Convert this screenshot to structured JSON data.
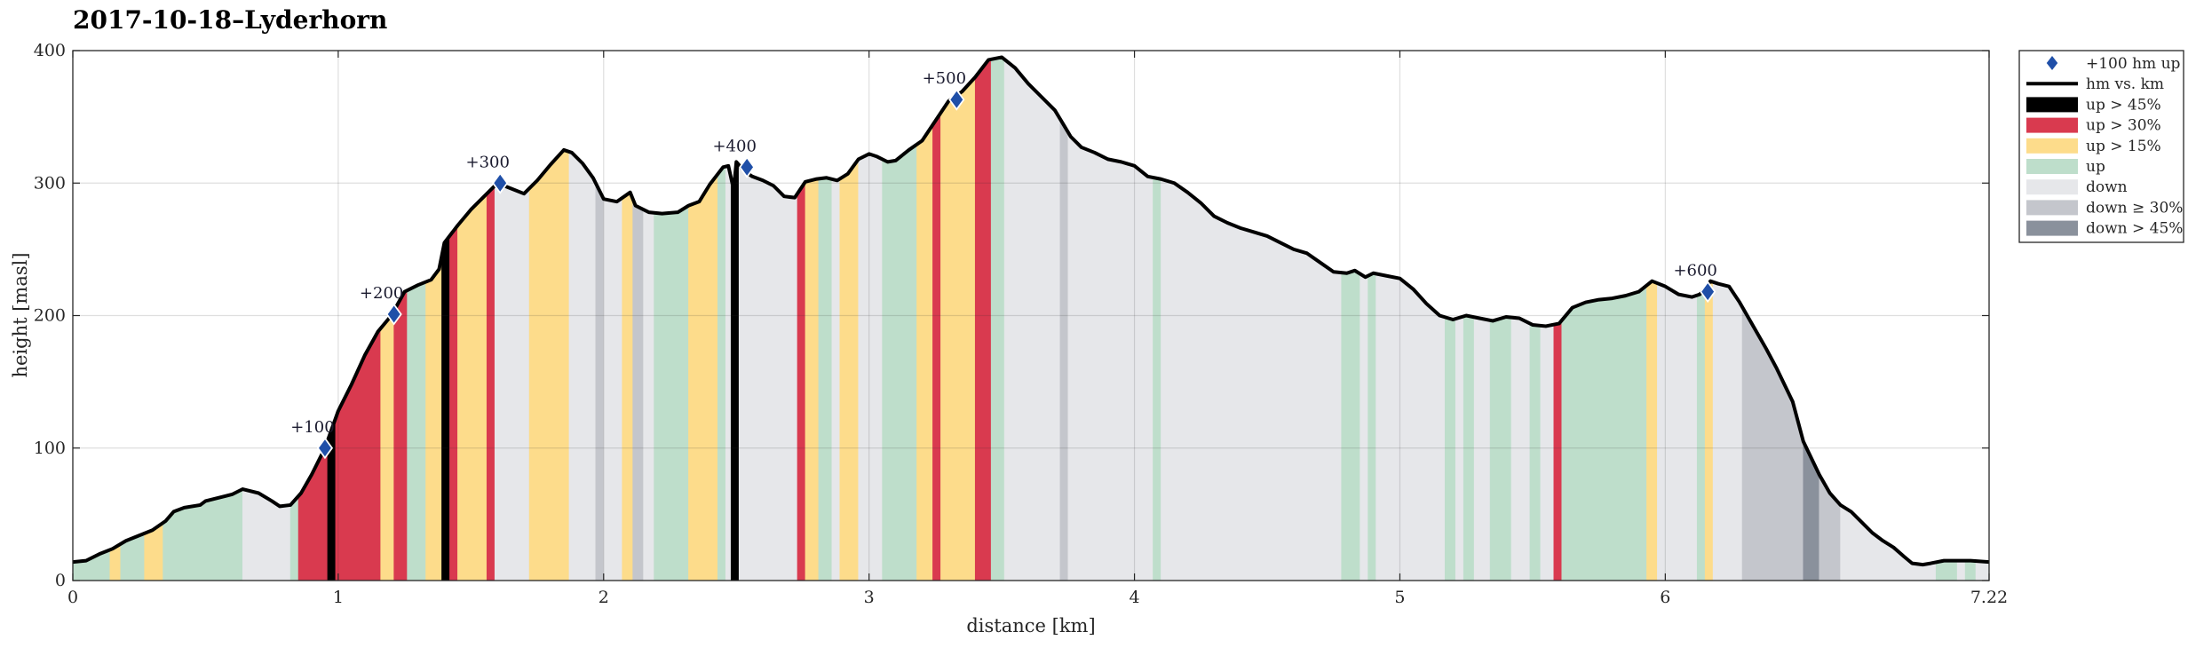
{
  "chart_data": {
    "type": "area",
    "title": "2017-10-18–Lyderhorn",
    "xlabel": "distance [km]",
    "ylabel": "height [masl]",
    "xlim": [
      0,
      7.22
    ],
    "ylim": [
      0,
      400
    ],
    "x_ticks": [
      "0",
      "1",
      "2",
      "3",
      "4",
      "5",
      "6",
      "7.22"
    ],
    "x_tick_values": [
      0,
      1,
      2,
      3,
      4,
      5,
      6,
      7.22
    ],
    "y_ticks": [
      "0",
      "100",
      "200",
      "300",
      "400"
    ],
    "y_tick_values": [
      0,
      100,
      200,
      300,
      400
    ],
    "grid": true,
    "legend_placement": "outside-top-right",
    "legend": [
      {
        "label": "+100 hm up",
        "kind": "marker",
        "color": "#1f4fa8"
      },
      {
        "label": "hm vs. km",
        "kind": "line",
        "color": "#000000"
      },
      {
        "label": "up > 45%",
        "kind": "patch",
        "color": "#000000"
      },
      {
        "label": "up > 30%",
        "kind": "patch",
        "color": "#d93a4f"
      },
      {
        "label": "up > 15%",
        "kind": "patch",
        "color": "#fddc8b"
      },
      {
        "label": "up",
        "kind": "patch",
        "color": "#bedecb"
      },
      {
        "label": "down",
        "kind": "patch",
        "color": "#e6e7ea"
      },
      {
        "label": "down ≥ 30%",
        "kind": "patch",
        "color": "#c4c6cc"
      },
      {
        "label": "down > 45%",
        "kind": "patch",
        "color": "#8a919c"
      }
    ],
    "category_colors": {
      "up45": "#000000",
      "up30": "#d93a4f",
      "up15": "#fddc8b",
      "up": "#bedecb",
      "down": "#e6e7ea",
      "down30": "#c4c6cc",
      "down45": "#8a919c"
    },
    "profile": [
      [
        0,
        14
      ],
      [
        0.05,
        15
      ],
      [
        0.1,
        20
      ],
      [
        0.15,
        24
      ],
      [
        0.2,
        30
      ],
      [
        0.3,
        38
      ],
      [
        0.35,
        45
      ],
      [
        0.38,
        52
      ],
      [
        0.42,
        55
      ],
      [
        0.48,
        57
      ],
      [
        0.5,
        60
      ],
      [
        0.6,
        65
      ],
      [
        0.64,
        69
      ],
      [
        0.7,
        66
      ],
      [
        0.75,
        60
      ],
      [
        0.78,
        56
      ],
      [
        0.82,
        57
      ],
      [
        0.86,
        66
      ],
      [
        0.9,
        80
      ],
      [
        0.95,
        100
      ],
      [
        1.0,
        128
      ],
      [
        1.05,
        148
      ],
      [
        1.1,
        170
      ],
      [
        1.15,
        188
      ],
      [
        1.2,
        200
      ],
      [
        1.25,
        218
      ],
      [
        1.3,
        223
      ],
      [
        1.35,
        227
      ],
      [
        1.38,
        235
      ],
      [
        1.4,
        255
      ],
      [
        1.45,
        268
      ],
      [
        1.5,
        280
      ],
      [
        1.55,
        290
      ],
      [
        1.6,
        300
      ],
      [
        1.65,
        296
      ],
      [
        1.7,
        292
      ],
      [
        1.75,
        302
      ],
      [
        1.8,
        314
      ],
      [
        1.85,
        325
      ],
      [
        1.88,
        323
      ],
      [
        1.92,
        315
      ],
      [
        1.96,
        304
      ],
      [
        2.0,
        288
      ],
      [
        2.05,
        286
      ],
      [
        2.1,
        293
      ],
      [
        2.12,
        283
      ],
      [
        2.17,
        278
      ],
      [
        2.22,
        277
      ],
      [
        2.28,
        278
      ],
      [
        2.32,
        283
      ],
      [
        2.36,
        286
      ],
      [
        2.4,
        299
      ],
      [
        2.45,
        312
      ],
      [
        2.47,
        313
      ],
      [
        2.49,
        295
      ],
      [
        2.5,
        316
      ],
      [
        2.53,
        309
      ],
      [
        2.56,
        305
      ],
      [
        2.6,
        302
      ],
      [
        2.64,
        298
      ],
      [
        2.68,
        290
      ],
      [
        2.72,
        289
      ],
      [
        2.76,
        301
      ],
      [
        2.8,
        303
      ],
      [
        2.84,
        304
      ],
      [
        2.88,
        302
      ],
      [
        2.92,
        307
      ],
      [
        2.96,
        318
      ],
      [
        3.0,
        322
      ],
      [
        3.03,
        320
      ],
      [
        3.07,
        316
      ],
      [
        3.1,
        317
      ],
      [
        3.15,
        325
      ],
      [
        3.2,
        332
      ],
      [
        3.25,
        347
      ],
      [
        3.3,
        362
      ],
      [
        3.35,
        369
      ],
      [
        3.4,
        380
      ],
      [
        3.45,
        393
      ],
      [
        3.5,
        395
      ],
      [
        3.55,
        387
      ],
      [
        3.6,
        375
      ],
      [
        3.65,
        365
      ],
      [
        3.7,
        355
      ],
      [
        3.73,
        345
      ],
      [
        3.76,
        335
      ],
      [
        3.8,
        327
      ],
      [
        3.85,
        323
      ],
      [
        3.9,
        318
      ],
      [
        3.95,
        316
      ],
      [
        4.0,
        313
      ],
      [
        4.05,
        305
      ],
      [
        4.1,
        303
      ],
      [
        4.15,
        300
      ],
      [
        4.2,
        293
      ],
      [
        4.25,
        285
      ],
      [
        4.3,
        275
      ],
      [
        4.35,
        270
      ],
      [
        4.4,
        266
      ],
      [
        4.45,
        263
      ],
      [
        4.5,
        260
      ],
      [
        4.55,
        255
      ],
      [
        4.6,
        250
      ],
      [
        4.65,
        247
      ],
      [
        4.7,
        240
      ],
      [
        4.75,
        233
      ],
      [
        4.8,
        232
      ],
      [
        4.83,
        234
      ],
      [
        4.87,
        229
      ],
      [
        4.9,
        232
      ],
      [
        4.95,
        230
      ],
      [
        5.0,
        228
      ],
      [
        5.05,
        220
      ],
      [
        5.1,
        209
      ],
      [
        5.15,
        200
      ],
      [
        5.2,
        197
      ],
      [
        5.25,
        200
      ],
      [
        5.3,
        198
      ],
      [
        5.35,
        196
      ],
      [
        5.4,
        199
      ],
      [
        5.45,
        198
      ],
      [
        5.5,
        193
      ],
      [
        5.55,
        192
      ],
      [
        5.6,
        194
      ],
      [
        5.65,
        206
      ],
      [
        5.7,
        210
      ],
      [
        5.75,
        212
      ],
      [
        5.8,
        213
      ],
      [
        5.85,
        215
      ],
      [
        5.9,
        218
      ],
      [
        5.95,
        226
      ],
      [
        6.0,
        222
      ],
      [
        6.05,
        216
      ],
      [
        6.1,
        214
      ],
      [
        6.13,
        216
      ],
      [
        6.17,
        226
      ],
      [
        6.2,
        224
      ],
      [
        6.24,
        222
      ],
      [
        6.28,
        210
      ],
      [
        6.32,
        196
      ],
      [
        6.38,
        175
      ],
      [
        6.42,
        160
      ],
      [
        6.48,
        135
      ],
      [
        6.52,
        105
      ],
      [
        6.58,
        80
      ],
      [
        6.62,
        66
      ],
      [
        6.66,
        57
      ],
      [
        6.7,
        52
      ],
      [
        6.74,
        44
      ],
      [
        6.78,
        36
      ],
      [
        6.82,
        30
      ],
      [
        6.86,
        25
      ],
      [
        6.9,
        18
      ],
      [
        6.93,
        13
      ],
      [
        6.97,
        12
      ],
      [
        7.0,
        13
      ],
      [
        7.05,
        15
      ],
      [
        7.1,
        15
      ],
      [
        7.15,
        15
      ],
      [
        7.22,
        14
      ]
    ],
    "bands": [
      {
        "x0": 0.0,
        "x1": 0.14,
        "cat": "up"
      },
      {
        "x0": 0.14,
        "x1": 0.18,
        "cat": "up15"
      },
      {
        "x0": 0.18,
        "x1": 0.27,
        "cat": "up"
      },
      {
        "x0": 0.27,
        "x1": 0.34,
        "cat": "up15"
      },
      {
        "x0": 0.34,
        "x1": 0.64,
        "cat": "up"
      },
      {
        "x0": 0.64,
        "x1": 0.82,
        "cat": "down"
      },
      {
        "x0": 0.82,
        "x1": 0.85,
        "cat": "up"
      },
      {
        "x0": 0.85,
        "x1": 0.96,
        "cat": "up30"
      },
      {
        "x0": 0.96,
        "x1": 0.99,
        "cat": "up45"
      },
      {
        "x0": 0.99,
        "x1": 1.16,
        "cat": "up30"
      },
      {
        "x0": 1.16,
        "x1": 1.21,
        "cat": "up15"
      },
      {
        "x0": 1.21,
        "x1": 1.26,
        "cat": "up30"
      },
      {
        "x0": 1.26,
        "x1": 1.33,
        "cat": "up"
      },
      {
        "x0": 1.33,
        "x1": 1.39,
        "cat": "up15"
      },
      {
        "x0": 1.39,
        "x1": 1.42,
        "cat": "up45"
      },
      {
        "x0": 1.42,
        "x1": 1.45,
        "cat": "up30"
      },
      {
        "x0": 1.45,
        "x1": 1.56,
        "cat": "up15"
      },
      {
        "x0": 1.56,
        "x1": 1.59,
        "cat": "up30"
      },
      {
        "x0": 1.59,
        "x1": 1.72,
        "cat": "down"
      },
      {
        "x0": 1.72,
        "x1": 1.87,
        "cat": "up15"
      },
      {
        "x0": 1.87,
        "x1": 1.97,
        "cat": "down"
      },
      {
        "x0": 1.97,
        "x1": 2.0,
        "cat": "down30"
      },
      {
        "x0": 2.0,
        "x1": 2.07,
        "cat": "down"
      },
      {
        "x0": 2.07,
        "x1": 2.11,
        "cat": "up15"
      },
      {
        "x0": 2.11,
        "x1": 2.15,
        "cat": "down30"
      },
      {
        "x0": 2.15,
        "x1": 2.19,
        "cat": "down"
      },
      {
        "x0": 2.19,
        "x1": 2.32,
        "cat": "up"
      },
      {
        "x0": 2.32,
        "x1": 2.43,
        "cat": "up15"
      },
      {
        "x0": 2.43,
        "x1": 2.46,
        "cat": "up"
      },
      {
        "x0": 2.46,
        "x1": 2.48,
        "cat": "down"
      },
      {
        "x0": 2.48,
        "x1": 2.51,
        "cat": "up45"
      },
      {
        "x0": 2.51,
        "x1": 2.73,
        "cat": "down"
      },
      {
        "x0": 2.73,
        "x1": 2.76,
        "cat": "up30"
      },
      {
        "x0": 2.76,
        "x1": 2.81,
        "cat": "up15"
      },
      {
        "x0": 2.81,
        "x1": 2.86,
        "cat": "up"
      },
      {
        "x0": 2.86,
        "x1": 2.89,
        "cat": "down"
      },
      {
        "x0": 2.89,
        "x1": 2.96,
        "cat": "up15"
      },
      {
        "x0": 2.96,
        "x1": 3.05,
        "cat": "down"
      },
      {
        "x0": 3.05,
        "x1": 3.18,
        "cat": "up"
      },
      {
        "x0": 3.18,
        "x1": 3.24,
        "cat": "up15"
      },
      {
        "x0": 3.24,
        "x1": 3.27,
        "cat": "up30"
      },
      {
        "x0": 3.27,
        "x1": 3.4,
        "cat": "up15"
      },
      {
        "x0": 3.4,
        "x1": 3.46,
        "cat": "up30"
      },
      {
        "x0": 3.46,
        "x1": 3.51,
        "cat": "up"
      },
      {
        "x0": 3.51,
        "x1": 3.72,
        "cat": "down"
      },
      {
        "x0": 3.72,
        "x1": 3.75,
        "cat": "down30"
      },
      {
        "x0": 3.75,
        "x1": 4.07,
        "cat": "down"
      },
      {
        "x0": 4.07,
        "x1": 4.1,
        "cat": "up"
      },
      {
        "x0": 4.1,
        "x1": 4.78,
        "cat": "down"
      },
      {
        "x0": 4.78,
        "x1": 4.85,
        "cat": "up"
      },
      {
        "x0": 4.85,
        "x1": 4.88,
        "cat": "down"
      },
      {
        "x0": 4.88,
        "x1": 4.91,
        "cat": "up"
      },
      {
        "x0": 4.91,
        "x1": 5.17,
        "cat": "down"
      },
      {
        "x0": 5.17,
        "x1": 5.21,
        "cat": "up"
      },
      {
        "x0": 5.21,
        "x1": 5.24,
        "cat": "down"
      },
      {
        "x0": 5.24,
        "x1": 5.28,
        "cat": "up"
      },
      {
        "x0": 5.28,
        "x1": 5.34,
        "cat": "down"
      },
      {
        "x0": 5.34,
        "x1": 5.42,
        "cat": "up"
      },
      {
        "x0": 5.42,
        "x1": 5.49,
        "cat": "down"
      },
      {
        "x0": 5.49,
        "x1": 5.53,
        "cat": "up"
      },
      {
        "x0": 5.53,
        "x1": 5.58,
        "cat": "down"
      },
      {
        "x0": 5.58,
        "x1": 5.61,
        "cat": "up30"
      },
      {
        "x0": 5.61,
        "x1": 5.93,
        "cat": "up"
      },
      {
        "x0": 5.93,
        "x1": 5.97,
        "cat": "up15"
      },
      {
        "x0": 5.97,
        "x1": 6.12,
        "cat": "down"
      },
      {
        "x0": 6.12,
        "x1": 6.15,
        "cat": "up"
      },
      {
        "x0": 6.15,
        "x1": 6.18,
        "cat": "up15"
      },
      {
        "x0": 6.18,
        "x1": 6.29,
        "cat": "down"
      },
      {
        "x0": 6.29,
        "x1": 6.38,
        "cat": "down30"
      },
      {
        "x0": 6.38,
        "x1": 6.52,
        "cat": "down30"
      },
      {
        "x0": 6.52,
        "x1": 6.58,
        "cat": "down45"
      },
      {
        "x0": 6.58,
        "x1": 6.66,
        "cat": "down30"
      },
      {
        "x0": 6.66,
        "x1": 7.02,
        "cat": "down"
      },
      {
        "x0": 7.02,
        "x1": 7.1,
        "cat": "up"
      },
      {
        "x0": 7.1,
        "x1": 7.13,
        "cat": "down"
      },
      {
        "x0": 7.13,
        "x1": 7.17,
        "cat": "up"
      },
      {
        "x0": 7.17,
        "x1": 7.22,
        "cat": "down"
      }
    ],
    "markers": [
      {
        "label": "+100",
        "x": 0.95,
        "y": 100
      },
      {
        "label": "+200",
        "x": 1.21,
        "y": 201
      },
      {
        "label": "+300",
        "x": 1.61,
        "y": 300
      },
      {
        "label": "+400",
        "x": 2.54,
        "y": 312
      },
      {
        "label": "+500",
        "x": 3.33,
        "y": 363
      },
      {
        "label": "+600",
        "x": 6.16,
        "y": 218
      }
    ]
  }
}
